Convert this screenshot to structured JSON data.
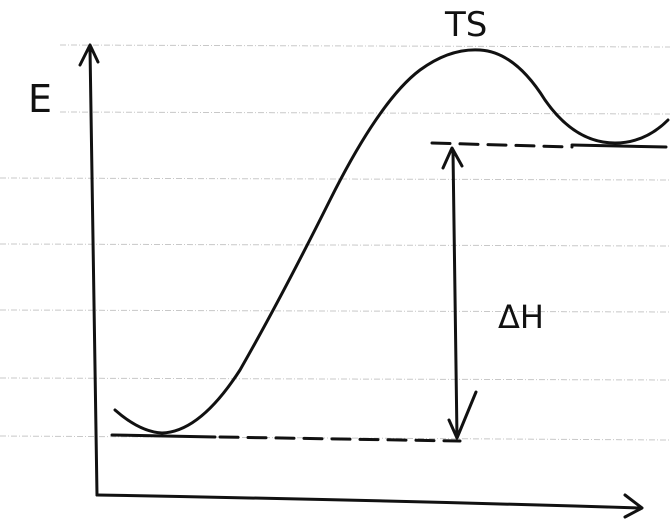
{
  "labels": {
    "energy_axis": "E",
    "transition_state": "TS",
    "enthalpy_change": "ΔH"
  }
}
